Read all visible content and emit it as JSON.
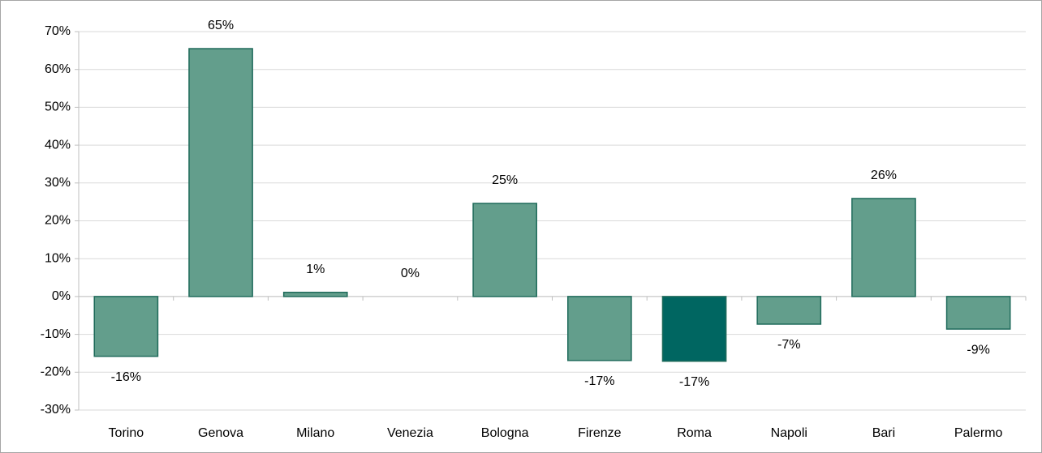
{
  "chart_data": {
    "type": "bar",
    "categories": [
      "Torino",
      "Genova",
      "Milano",
      "Venezia",
      "Bologna",
      "Firenze",
      "Roma",
      "Napoli",
      "Bari",
      "Palermo"
    ],
    "values": [
      -15.8,
      65.5,
      1.1,
      0,
      24.6,
      -16.9,
      -17.1,
      -7.3,
      25.9,
      -8.6
    ],
    "value_labels": [
      "-16%",
      "65%",
      "1%",
      "0%",
      "25%",
      "-17%",
      "-17%",
      "-7%",
      "26%",
      "-9%"
    ],
    "colors": [
      "#639e8c",
      "#639e8c",
      "#639e8c",
      "#639e8c",
      "#639e8c",
      "#639e8c",
      "#006661",
      "#639e8c",
      "#639e8c",
      "#639e8c"
    ],
    "ylim": [
      -30,
      70
    ],
    "yticks": [
      {
        "value": -30,
        "label": "-30%"
      },
      {
        "value": -20,
        "label": "-20%"
      },
      {
        "value": -10,
        "label": "-10%"
      },
      {
        "value": 0,
        "label": "0%"
      },
      {
        "value": 10,
        "label": "10%"
      },
      {
        "value": 20,
        "label": "20%"
      },
      {
        "value": 30,
        "label": "30%"
      },
      {
        "value": 40,
        "label": "40%"
      },
      {
        "value": 50,
        "label": "50%"
      },
      {
        "value": 60,
        "label": "60%"
      },
      {
        "value": 70,
        "label": "70%"
      }
    ],
    "grid": true
  }
}
